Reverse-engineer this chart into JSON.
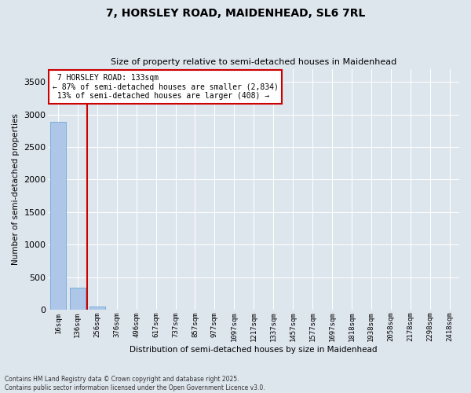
{
  "title_line1": "7, HORSLEY ROAD, MAIDENHEAD, SL6 7RL",
  "title_line2": "Size of property relative to semi-detached houses in Maidenhead",
  "xlabel": "Distribution of semi-detached houses by size in Maidenhead",
  "ylabel": "Number of semi-detached properties",
  "categories": [
    "16sqm",
    "136sqm",
    "256sqm",
    "376sqm",
    "496sqm",
    "617sqm",
    "737sqm",
    "857sqm",
    "977sqm",
    "1097sqm",
    "1217sqm",
    "1337sqm",
    "1457sqm",
    "1577sqm",
    "1697sqm",
    "1818sqm",
    "1938sqm",
    "2058sqm",
    "2178sqm",
    "2298sqm",
    "2418sqm"
  ],
  "values": [
    2890,
    340,
    45,
    3,
    1,
    0,
    0,
    0,
    0,
    0,
    0,
    0,
    0,
    0,
    0,
    0,
    0,
    0,
    0,
    0,
    0
  ],
  "bar_color": "#aec6e8",
  "bar_edge_color": "#5a9fd4",
  "vline_x": 1.5,
  "property_label": "7 HORSLEY ROAD: 133sqm",
  "pct_smaller": 87,
  "count_smaller": 2834,
  "pct_larger": 13,
  "count_larger": 408,
  "annotation_box_color": "#cc0000",
  "vline_color": "#cc0000",
  "ylim": [
    0,
    3700
  ],
  "yticks": [
    0,
    500,
    1000,
    1500,
    2000,
    2500,
    3000,
    3500
  ],
  "background_color": "#dde5ed",
  "grid_color": "#ffffff",
  "footer": "Contains HM Land Registry data © Crown copyright and database right 2025.\nContains public sector information licensed under the Open Government Licence v3.0."
}
